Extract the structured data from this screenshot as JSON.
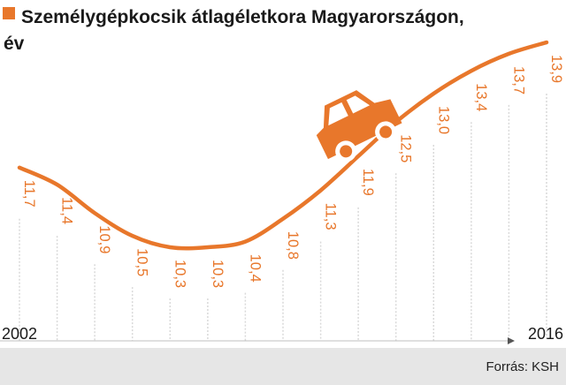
{
  "header": {
    "title_line1": "Személygépkocsik átlagéletkora Magyarországon,",
    "title_line2": "év"
  },
  "footer": {
    "source": "Forrás: KSH"
  },
  "colors": {
    "accent": "#e8772b",
    "gridline": "#d9d9d9",
    "footer_bg": "#e6e6e6",
    "text": "#1a1a1a"
  },
  "icons": {
    "title_marker": "orange-square-icon",
    "illustration": "car-icon"
  },
  "chart_data": {
    "type": "line",
    "title": "Személygépkocsik átlagéletkora Magyarországon, év",
    "x": [
      2002,
      2003,
      2004,
      2005,
      2006,
      2007,
      2008,
      2009,
      2010,
      2011,
      2012,
      2013,
      2014,
      2015,
      2016
    ],
    "values": [
      11.7,
      11.4,
      10.9,
      10.5,
      10.3,
      10.3,
      10.4,
      10.8,
      11.3,
      11.9,
      12.5,
      13.0,
      13.4,
      13.7,
      13.9
    ],
    "labels": [
      "11,7",
      "11,4",
      "10,9",
      "10,5",
      "10,3",
      "10,3",
      "10,4",
      "10,8",
      "11,3",
      "11,9",
      "12,5",
      "13,0",
      "13,4",
      "13,7",
      "13,9"
    ],
    "x_tick_labels": [
      "2002",
      "2016"
    ],
    "ylim": [
      10.3,
      13.9
    ],
    "grid": "vertical dotted lines",
    "legend": "none",
    "data_labels": "rotated vertical, below line"
  }
}
